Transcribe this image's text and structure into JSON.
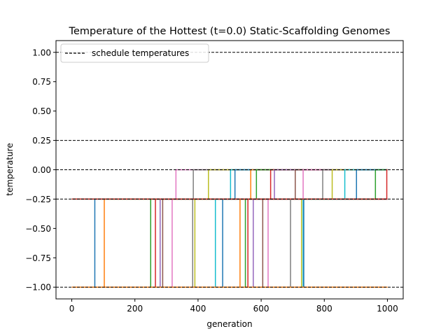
{
  "chart_data": {
    "type": "line",
    "title": "Temperature of the Hottest (t=0.0) Static-Scaffolding Genomes",
    "xlabel": "generation",
    "ylabel": "temperature",
    "xlim": [
      -50,
      1050
    ],
    "ylim": [
      -1.1,
      1.1
    ],
    "xticks": [
      0,
      200,
      400,
      600,
      800,
      1000
    ],
    "xtick_labels": [
      "0",
      "200",
      "400",
      "600",
      "800",
      "1000"
    ],
    "yticks": [
      1.0,
      0.75,
      0.5,
      0.25,
      0.0,
      -0.25,
      -0.5,
      -0.75,
      -1.0
    ],
    "ytick_labels": [
      "1.00",
      "0.75",
      "0.50",
      "0.25",
      "0.00",
      "−0.25",
      "−0.50",
      "−0.75",
      "−1.00"
    ],
    "grid": false,
    "legend": {
      "position": "top-left",
      "entries": [
        "schedule temperatures"
      ]
    },
    "schedule_temperatures": [
      1.0,
      0.25,
      0.0,
      -0.25,
      -1.0
    ],
    "palette": [
      "#1f77b4",
      "#ff7f0e",
      "#2ca02c",
      "#d62728",
      "#9467bd",
      "#8c564b",
      "#e377c2",
      "#7f7f7f",
      "#bcbd22",
      "#17becf"
    ],
    "series": [
      {
        "steps": [
          [
            0,
            -1.0
          ],
          [
            73,
            -0.25
          ],
          [
            1000,
            -0.25
          ]
        ]
      },
      {
        "steps": [
          [
            0,
            -1.0
          ],
          [
            103,
            -0.25
          ],
          [
            1000,
            -0.25
          ]
        ]
      },
      {
        "steps": [
          [
            0,
            -1.0
          ],
          [
            250,
            -0.25
          ],
          [
            1000,
            -0.25
          ]
        ]
      },
      {
        "steps": [
          [
            0,
            -1.0
          ],
          [
            265,
            -0.25
          ],
          [
            1000,
            -0.25
          ]
        ]
      },
      {
        "steps": [
          [
            0,
            -1.0
          ],
          [
            280,
            -0.25
          ],
          [
            1000,
            -0.25
          ]
        ]
      },
      {
        "steps": [
          [
            0,
            -1.0
          ],
          [
            288,
            -0.25
          ],
          [
            1000,
            -0.25
          ]
        ]
      },
      {
        "steps": [
          [
            0,
            -1.0
          ],
          [
            318,
            -0.25
          ],
          [
            330,
            0.0
          ],
          [
            1000,
            0.0
          ]
        ]
      },
      {
        "steps": [
          [
            0,
            -1.0
          ],
          [
            383,
            -0.25
          ],
          [
            385,
            0.0
          ],
          [
            1000,
            0.0
          ]
        ]
      },
      {
        "steps": [
          [
            0,
            -1.0
          ],
          [
            390,
            -0.25
          ],
          [
            433,
            0.0
          ],
          [
            1000,
            0.0
          ]
        ]
      },
      {
        "steps": [
          [
            0,
            -1.0
          ],
          [
            455,
            -0.25
          ],
          [
            503,
            0.0
          ],
          [
            1000,
            0.0
          ]
        ]
      },
      {
        "steps": [
          [
            0,
            -1.0
          ],
          [
            478,
            -0.25
          ],
          [
            517,
            0.0
          ],
          [
            1000,
            0.0
          ]
        ]
      },
      {
        "steps": [
          [
            0,
            -1.0
          ],
          [
            533,
            -0.25
          ],
          [
            567,
            0.0
          ],
          [
            1000,
            0.0
          ]
        ]
      },
      {
        "steps": [
          [
            0,
            -1.0
          ],
          [
            550,
            -0.25
          ],
          [
            585,
            0.0
          ],
          [
            1000,
            0.0
          ]
        ]
      },
      {
        "steps": [
          [
            0,
            -1.0
          ],
          [
            558,
            -0.25
          ],
          [
            630,
            0.0
          ],
          [
            1000,
            0.0
          ]
        ]
      },
      {
        "steps": [
          [
            0,
            -1.0
          ],
          [
            575,
            -0.25
          ],
          [
            642,
            0.0
          ],
          [
            1000,
            0.0
          ]
        ]
      },
      {
        "steps": [
          [
            0,
            -1.0
          ],
          [
            605,
            -0.25
          ],
          [
            708,
            0.0
          ],
          [
            1000,
            0.0
          ]
        ]
      },
      {
        "steps": [
          [
            0,
            -1.0
          ],
          [
            622,
            -0.25
          ],
          [
            733,
            0.0
          ],
          [
            1000,
            0.0
          ]
        ]
      },
      {
        "steps": [
          [
            0,
            -1.0
          ],
          [
            693,
            -0.25
          ],
          [
            795,
            0.0
          ],
          [
            1000,
            0.0
          ]
        ]
      },
      {
        "steps": [
          [
            0,
            -1.0
          ],
          [
            728,
            -0.25
          ],
          [
            825,
            0.0
          ],
          [
            1000,
            0.0
          ]
        ]
      },
      {
        "steps": [
          [
            0,
            -1.0
          ],
          [
            733,
            -0.25
          ],
          [
            865,
            0.0
          ],
          [
            1000,
            0.0
          ]
        ]
      },
      {
        "steps": [
          [
            0,
            -1.0
          ],
          [
            735,
            -0.25
          ],
          [
            902,
            0.0
          ],
          [
            1000,
            0.0
          ]
        ]
      },
      {
        "steps": [
          [
            0,
            -1.0
          ],
          [
            1000,
            -1.0
          ]
        ]
      },
      {
        "steps": [
          [
            0,
            -0.25
          ],
          [
            962,
            -0.25
          ],
          [
            962,
            0.0
          ],
          [
            1000,
            0.0
          ]
        ]
      },
      {
        "steps": [
          [
            0,
            -0.25
          ],
          [
            998,
            -0.25
          ],
          [
            998,
            0.0
          ],
          [
            1000,
            0.0
          ]
        ]
      }
    ]
  }
}
